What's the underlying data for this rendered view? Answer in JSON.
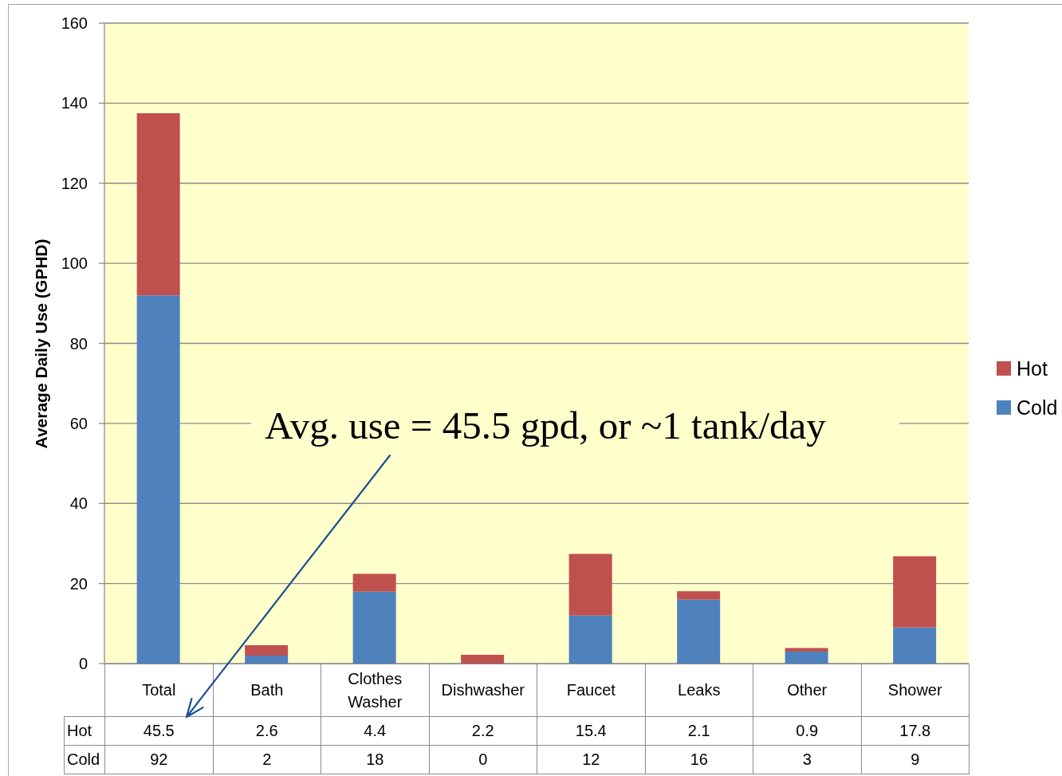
{
  "chart_data": {
    "type": "bar",
    "stacked": true,
    "categories": [
      "Total",
      "Bath",
      "Clothes Washer",
      "Dishwasher",
      "Faucet",
      "Leaks",
      "Other",
      "Shower"
    ],
    "series": [
      {
        "name": "Cold",
        "color": "#4f81bd",
        "values": [
          92,
          2,
          18,
          0,
          12,
          16,
          3,
          9
        ]
      },
      {
        "name": "Hot",
        "color": "#c0504d",
        "values": [
          45.5,
          2.6,
          4.4,
          2.2,
          15.4,
          2.1,
          0.9,
          17.8
        ]
      }
    ],
    "ylabel": "Average Daily Use (GPHD)",
    "ylim": [
      0,
      160
    ],
    "yticks": [
      0,
      20,
      40,
      60,
      80,
      100,
      120,
      140,
      160
    ],
    "grid": "y",
    "legend": "right",
    "data_labels": true,
    "annotations": [
      "Avg. use = 45.5 gpd, or ~1 tank/day"
    ]
  }
}
